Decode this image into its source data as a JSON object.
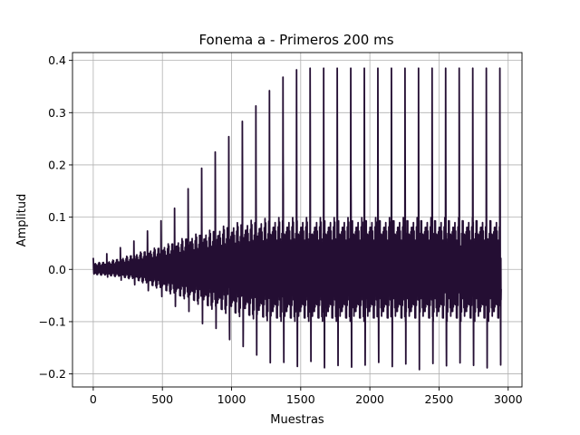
{
  "chart_data": {
    "type": "line",
    "title": "Fonema a - Primeros 200 ms",
    "xlabel": "Muestras",
    "ylabel": "Amplitud",
    "xlim": [
      -150,
      3100
    ],
    "ylim": [
      -0.225,
      0.415
    ],
    "xticks": [
      0,
      500,
      1000,
      1500,
      2000,
      2500,
      3000
    ],
    "yticks": [
      -0.2,
      -0.1,
      0.0,
      0.1,
      0.2,
      0.3,
      0.4
    ],
    "xtick_labels": [
      "0",
      "500",
      "1000",
      "1500",
      "2000",
      "2500",
      "3000"
    ],
    "ytick_labels": [
      "−0.2",
      "−0.1",
      "0.0",
      "0.1",
      "0.2",
      "0.3",
      "0.4"
    ],
    "grid": true,
    "legend": "none",
    "series": [
      {
        "color": "#240e33",
        "sample_count": 2950,
        "pitch_period_samples": 98,
        "envelope": {
          "x": [
            0,
            100,
            200,
            300,
            400,
            500,
            600,
            700,
            800,
            900,
            1000,
            1100,
            1200,
            1300,
            1400,
            1500,
            1600,
            2900
          ],
          "peak_max": [
            0.022,
            0.03,
            0.042,
            0.055,
            0.075,
            0.095,
            0.12,
            0.16,
            0.2,
            0.23,
            0.26,
            0.29,
            0.32,
            0.35,
            0.375,
            0.385,
            0.385,
            0.385
          ],
          "peak_min": [
            -0.01,
            -0.015,
            -0.022,
            -0.032,
            -0.045,
            -0.06,
            -0.075,
            -0.09,
            -0.11,
            -0.13,
            -0.15,
            -0.165,
            -0.18,
            -0.19,
            -0.2,
            -0.2,
            -0.2,
            -0.2
          ],
          "body_max": [
            0.012,
            0.015,
            0.022,
            0.03,
            0.038,
            0.045,
            0.055,
            0.065,
            0.072,
            0.08,
            0.088,
            0.093,
            0.097,
            0.1,
            0.1,
            0.1,
            0.1,
            0.1
          ],
          "body_min": [
            -0.01,
            -0.012,
            -0.015,
            -0.02,
            -0.03,
            -0.04,
            -0.052,
            -0.06,
            -0.072,
            -0.08,
            -0.088,
            -0.093,
            -0.097,
            -0.1,
            -0.1,
            -0.1,
            -0.1,
            -0.1
          ]
        }
      }
    ]
  }
}
